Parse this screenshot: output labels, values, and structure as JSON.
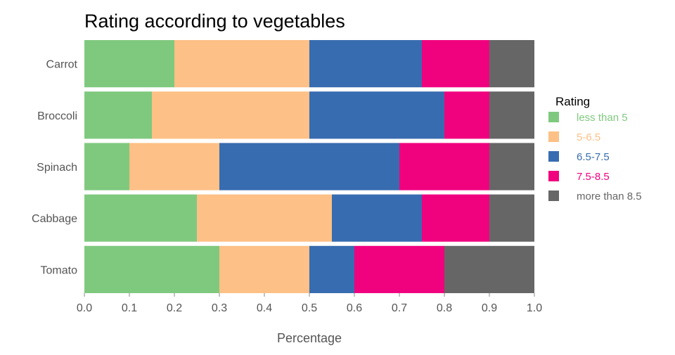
{
  "chart_data": {
    "type": "bar",
    "orientation": "horizontal",
    "stacked": true,
    "title": "Rating according to vegetables",
    "xlabel": "Percentage",
    "ylabel": "",
    "xlim": [
      0,
      1
    ],
    "xticks": [
      "0.0",
      "0.1",
      "0.2",
      "0.3",
      "0.4",
      "0.5",
      "0.6",
      "0.7",
      "0.8",
      "0.9",
      "1.0"
    ],
    "categories": [
      "Carrot",
      "Broccoli",
      "Spinach",
      "Cabbage",
      "Tomato"
    ],
    "series": [
      {
        "name": "less than 5",
        "color": "#7fc97f",
        "values": [
          0.2,
          0.15,
          0.1,
          0.25,
          0.3
        ]
      },
      {
        "name": "5-6.5",
        "color": "#fdc086",
        "values": [
          0.3,
          0.35,
          0.2,
          0.3,
          0.2
        ]
      },
      {
        "name": "6.5-7.5",
        "color": "#386cb0",
        "values": [
          0.25,
          0.3,
          0.4,
          0.2,
          0.1
        ]
      },
      {
        "name": "7.5-8.5",
        "color": "#f0027f",
        "values": [
          0.15,
          0.1,
          0.2,
          0.15,
          0.2
        ]
      },
      {
        "name": "more than 8.5",
        "color": "#666666",
        "values": [
          0.1,
          0.1,
          0.1,
          0.1,
          0.2
        ]
      }
    ],
    "legend": {
      "title": "Rating",
      "placement": "right"
    },
    "grid": false
  }
}
